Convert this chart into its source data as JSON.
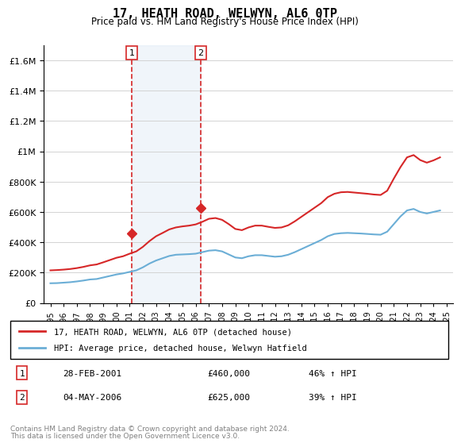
{
  "title": "17, HEATH ROAD, WELWYN, AL6 0TP",
  "subtitle": "Price paid vs. HM Land Registry's House Price Index (HPI)",
  "footer_line1": "Contains HM Land Registry data © Crown copyright and database right 2024.",
  "footer_line2": "This data is licensed under the Open Government Licence v3.0.",
  "legend_line1": "17, HEATH ROAD, WELWYN, AL6 0TP (detached house)",
  "legend_line2": "HPI: Average price, detached house, Welwyn Hatfield",
  "transaction1_label": "1",
  "transaction1_date": "28-FEB-2001",
  "transaction1_price": "£460,000",
  "transaction1_hpi": "46% ↑ HPI",
  "transaction1_year": 2001.15,
  "transaction1_value": 460000,
  "transaction2_label": "2",
  "transaction2_date": "04-MAY-2006",
  "transaction2_price": "£625,000",
  "transaction2_hpi": "39% ↑ HPI",
  "transaction2_year": 2006.37,
  "transaction2_value": 625000,
  "hpi_color": "#6baed6",
  "price_color": "#d62728",
  "vline_color": "#d62728",
  "shade_color": "#c6dbef",
  "ylim": [
    0,
    1700000
  ],
  "yticks": [
    0,
    200000,
    400000,
    600000,
    800000,
    1000000,
    1200000,
    1400000,
    1600000
  ],
  "xlim_start": 1994.5,
  "xlim_end": 2025.5,
  "hpi_data": {
    "years": [
      1995.0,
      1995.5,
      1996.0,
      1996.5,
      1997.0,
      1997.5,
      1998.0,
      1998.5,
      1999.0,
      1999.5,
      2000.0,
      2000.5,
      2001.0,
      2001.5,
      2002.0,
      2002.5,
      2003.0,
      2003.5,
      2004.0,
      2004.5,
      2005.0,
      2005.5,
      2006.0,
      2006.5,
      2007.0,
      2007.5,
      2008.0,
      2008.5,
      2009.0,
      2009.5,
      2010.0,
      2010.5,
      2011.0,
      2011.5,
      2012.0,
      2012.5,
      2013.0,
      2013.5,
      2014.0,
      2014.5,
      2015.0,
      2015.5,
      2016.0,
      2016.5,
      2017.0,
      2017.5,
      2018.0,
      2018.5,
      2019.0,
      2019.5,
      2020.0,
      2020.5,
      2021.0,
      2021.5,
      2022.0,
      2022.5,
      2023.0,
      2023.5,
      2024.0,
      2024.5
    ],
    "values": [
      130000,
      131000,
      134000,
      137000,
      142000,
      148000,
      155000,
      158000,
      168000,
      178000,
      188000,
      195000,
      205000,
      215000,
      235000,
      260000,
      280000,
      295000,
      310000,
      318000,
      320000,
      322000,
      325000,
      335000,
      345000,
      348000,
      340000,
      320000,
      300000,
      295000,
      308000,
      315000,
      315000,
      310000,
      305000,
      308000,
      318000,
      335000,
      355000,
      375000,
      395000,
      415000,
      440000,
      455000,
      460000,
      462000,
      460000,
      458000,
      455000,
      452000,
      450000,
      470000,
      520000,
      570000,
      610000,
      620000,
      600000,
      590000,
      600000,
      610000
    ]
  },
  "price_data": {
    "years": [
      1995.0,
      1995.5,
      1996.0,
      1996.5,
      1997.0,
      1997.5,
      1998.0,
      1998.5,
      1999.0,
      1999.5,
      2000.0,
      2000.5,
      2001.0,
      2001.5,
      2002.0,
      2002.5,
      2003.0,
      2003.5,
      2004.0,
      2004.5,
      2005.0,
      2005.5,
      2006.0,
      2006.5,
      2007.0,
      2007.5,
      2008.0,
      2008.5,
      2009.0,
      2009.5,
      2010.0,
      2010.5,
      2011.0,
      2011.5,
      2012.0,
      2012.5,
      2013.0,
      2013.5,
      2014.0,
      2014.5,
      2015.0,
      2015.5,
      2016.0,
      2016.5,
      2017.0,
      2017.5,
      2018.0,
      2018.5,
      2019.0,
      2019.5,
      2020.0,
      2020.5,
      2021.0,
      2021.5,
      2022.0,
      2022.5,
      2023.0,
      2023.5,
      2024.0,
      2024.5
    ],
    "values": [
      215000,
      217000,
      220000,
      224000,
      230000,
      238000,
      248000,
      254000,
      268000,
      283000,
      298000,
      308000,
      325000,
      340000,
      370000,
      408000,
      440000,
      462000,
      485000,
      498000,
      505000,
      510000,
      518000,
      535000,
      555000,
      560000,
      548000,
      520000,
      488000,
      480000,
      498000,
      510000,
      510000,
      502000,
      495000,
      498000,
      512000,
      538000,
      568000,
      598000,
      628000,
      658000,
      698000,
      720000,
      730000,
      732000,
      728000,
      724000,
      720000,
      715000,
      712000,
      740000,
      820000,
      895000,
      960000,
      975000,
      942000,
      925000,
      940000,
      960000
    ]
  }
}
